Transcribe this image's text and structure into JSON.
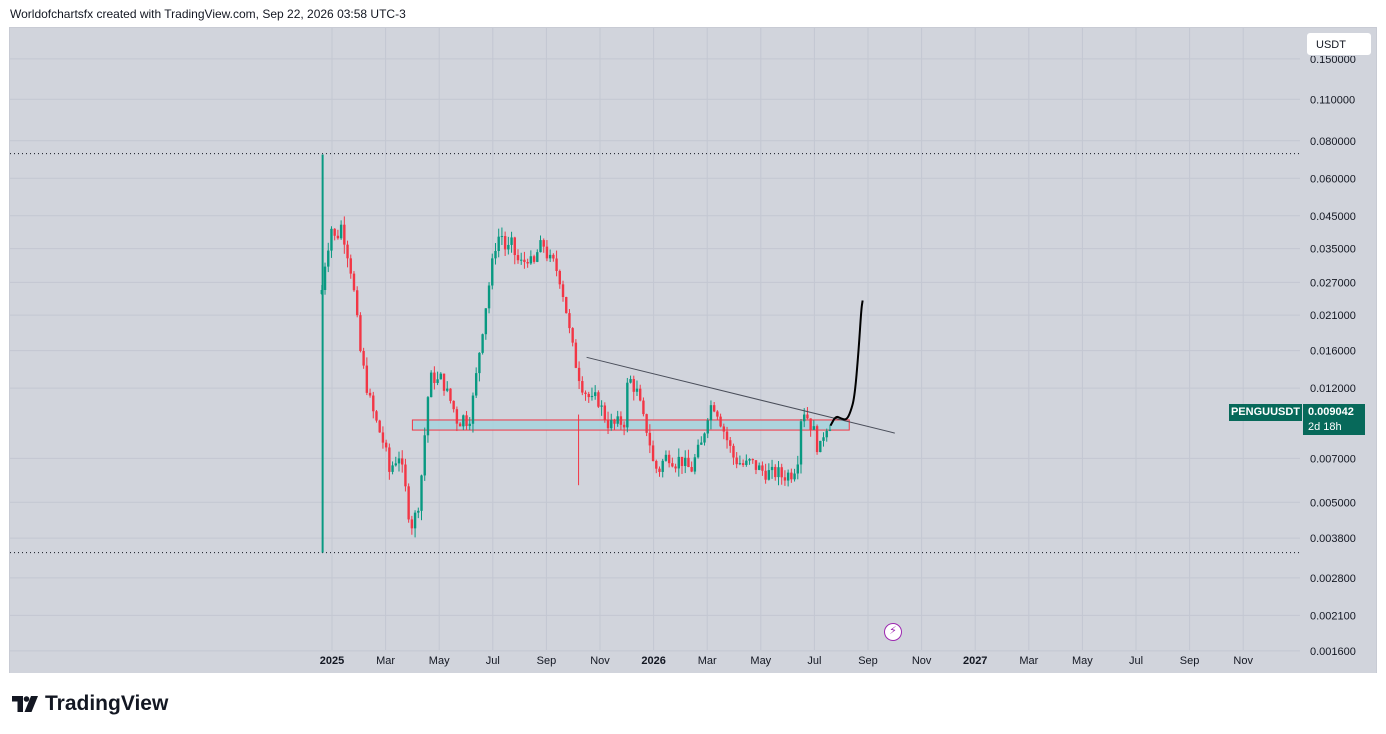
{
  "header": {
    "text": "Worldofchartsfx created with TradingView.com, Sep 22, 2026 03:58 UTC-3"
  },
  "footer": {
    "brand": "TradingView"
  },
  "currency": "USDT",
  "symbol": {
    "name": "PENGUUSDT",
    "price": "0.009042",
    "countdown": "2d 18h"
  },
  "colors": {
    "bull": "#089981",
    "bear": "#f23645",
    "background": "#d1d4dc",
    "grid": "#c3c7d2",
    "label": "#07695a",
    "zone": "#a8d3dd"
  },
  "chart_data": {
    "type": "candlestick",
    "y_scale": "log",
    "y_ticks": [
      "0.150000",
      "0.110000",
      "0.080000",
      "0.060000",
      "0.045000",
      "0.035000",
      "0.027000",
      "0.021000",
      "0.016000",
      "0.012000",
      "0.007000",
      "0.005000",
      "0.003800",
      "0.002800",
      "0.002100",
      "0.001600"
    ],
    "ylim": [
      0.00135,
      0.19
    ],
    "x_ticks": [
      {
        "label": "2025",
        "m": 12,
        "bold": true
      },
      {
        "label": "Mar",
        "m": 14
      },
      {
        "label": "May",
        "m": 16
      },
      {
        "label": "Jul",
        "m": 18
      },
      {
        "label": "Sep",
        "m": 20
      },
      {
        "label": "Nov",
        "m": 22
      },
      {
        "label": "2026",
        "m": 24,
        "bold": true
      },
      {
        "label": "Mar",
        "m": 26
      },
      {
        "label": "May",
        "m": 28
      },
      {
        "label": "Jul",
        "m": 30
      },
      {
        "label": "Sep",
        "m": 32
      },
      {
        "label": "Nov",
        "m": 34
      },
      {
        "label": "2027",
        "m": 36,
        "bold": true
      },
      {
        "label": "Mar",
        "m": 38
      },
      {
        "label": "May",
        "m": 40
      },
      {
        "label": "Jul",
        "m": 42
      },
      {
        "label": "Sep",
        "m": 44
      },
      {
        "label": "Nov",
        "m": 46
      }
    ],
    "path": [
      [
        11.62,
        0.0255
      ],
      [
        11.75,
        0.032
      ],
      [
        11.9,
        0.038
      ],
      [
        12.0,
        0.042
      ],
      [
        12.15,
        0.036
      ],
      [
        12.3,
        0.043
      ],
      [
        12.5,
        0.037
      ],
      [
        12.7,
        0.03
      ],
      [
        12.9,
        0.022
      ],
      [
        13.0,
        0.017
      ],
      [
        13.2,
        0.0135
      ],
      [
        13.4,
        0.011
      ],
      [
        13.6,
        0.0095
      ],
      [
        13.8,
        0.0085
      ],
      [
        14.0,
        0.0075
      ],
      [
        14.1,
        0.0062
      ],
      [
        14.3,
        0.0068
      ],
      [
        14.5,
        0.0072
      ],
      [
        14.7,
        0.0058
      ],
      [
        14.9,
        0.0044
      ],
      [
        15.0,
        0.0042
      ],
      [
        15.2,
        0.0048
      ],
      [
        15.35,
        0.0063
      ],
      [
        15.45,
        0.0082
      ],
      [
        15.6,
        0.0118
      ],
      [
        15.75,
        0.0135
      ],
      [
        15.9,
        0.0125
      ],
      [
        16.1,
        0.013
      ],
      [
        16.3,
        0.0115
      ],
      [
        16.5,
        0.0105
      ],
      [
        16.7,
        0.0092
      ],
      [
        16.9,
        0.0096
      ],
      [
        17.1,
        0.0093
      ],
      [
        17.3,
        0.0115
      ],
      [
        17.5,
        0.016
      ],
      [
        17.7,
        0.0215
      ],
      [
        17.9,
        0.028
      ],
      [
        18.1,
        0.036
      ],
      [
        18.3,
        0.04
      ],
      [
        18.5,
        0.034
      ],
      [
        18.7,
        0.036
      ],
      [
        18.9,
        0.032
      ],
      [
        19.1,
        0.031
      ],
      [
        19.3,
        0.033
      ],
      [
        19.5,
        0.03
      ],
      [
        19.7,
        0.035
      ],
      [
        19.9,
        0.036
      ],
      [
        20.1,
        0.032
      ],
      [
        20.3,
        0.031
      ],
      [
        20.5,
        0.028
      ],
      [
        20.7,
        0.023
      ],
      [
        20.9,
        0.0175
      ],
      [
        21.1,
        0.0145
      ],
      [
        21.3,
        0.0125
      ],
      [
        21.5,
        0.0115
      ],
      [
        21.7,
        0.0108
      ],
      [
        21.9,
        0.0112
      ],
      [
        22.1,
        0.01
      ],
      [
        22.3,
        0.0092
      ],
      [
        22.5,
        0.009
      ],
      [
        22.7,
        0.0092
      ],
      [
        22.9,
        0.0093
      ],
      [
        23.05,
        0.013
      ],
      [
        23.2,
        0.0125
      ],
      [
        23.4,
        0.0115
      ],
      [
        23.6,
        0.0095
      ],
      [
        23.8,
        0.0085
      ],
      [
        24.0,
        0.0066
      ],
      [
        24.2,
        0.0064
      ],
      [
        24.4,
        0.007
      ],
      [
        24.6,
        0.0072
      ],
      [
        24.8,
        0.0068
      ],
      [
        25.0,
        0.007
      ],
      [
        25.2,
        0.0066
      ],
      [
        25.4,
        0.0064
      ],
      [
        25.6,
        0.0072
      ],
      [
        25.8,
        0.0078
      ],
      [
        26.0,
        0.0098
      ],
      [
        26.2,
        0.0108
      ],
      [
        26.4,
        0.01
      ],
      [
        26.6,
        0.0088
      ],
      [
        26.8,
        0.0078
      ],
      [
        27.0,
        0.007
      ],
      [
        27.2,
        0.0068
      ],
      [
        27.4,
        0.0066
      ],
      [
        27.6,
        0.0068
      ],
      [
        27.8,
        0.0066
      ],
      [
        28.0,
        0.0064
      ],
      [
        28.2,
        0.0063
      ],
      [
        28.4,
        0.0062
      ],
      [
        28.6,
        0.0063
      ],
      [
        28.8,
        0.0061
      ],
      [
        29.0,
        0.0062
      ],
      [
        29.2,
        0.0063
      ],
      [
        29.4,
        0.0072
      ],
      [
        29.5,
        0.0096
      ],
      [
        29.6,
        0.0102
      ],
      [
        29.8,
        0.0094
      ],
      [
        30.0,
        0.0085
      ],
      [
        30.1,
        0.0078
      ],
      [
        30.2,
        0.0074
      ],
      [
        30.3,
        0.0082
      ],
      [
        30.4,
        0.009
      ],
      [
        30.6,
        0.0092
      ]
    ],
    "spikes": [
      {
        "m": 11.65,
        "high": 0.072,
        "low": 0.0034
      },
      {
        "m": 21.2,
        "high": 0.0098,
        "low": 0.0057
      }
    ],
    "zone": {
      "m_start": 15.0,
      "m_end": 31.3,
      "price_top": 0.0094,
      "price_bottom": 0.0087
    },
    "trendline": {
      "m1": 21.5,
      "p1": 0.0152,
      "m2": 33.0,
      "p2": 0.0085
    },
    "dotted_levels": [
      0.0725,
      0.0034
    ],
    "projection": [
      [
        30.6,
        0.009
      ],
      [
        30.8,
        0.0097
      ],
      [
        31.0,
        0.0095
      ],
      [
        31.2,
        0.0094
      ],
      [
        31.35,
        0.01
      ],
      [
        31.5,
        0.0112
      ],
      [
        31.65,
        0.016
      ],
      [
        31.75,
        0.022
      ],
      [
        31.8,
        0.0235
      ]
    ]
  }
}
